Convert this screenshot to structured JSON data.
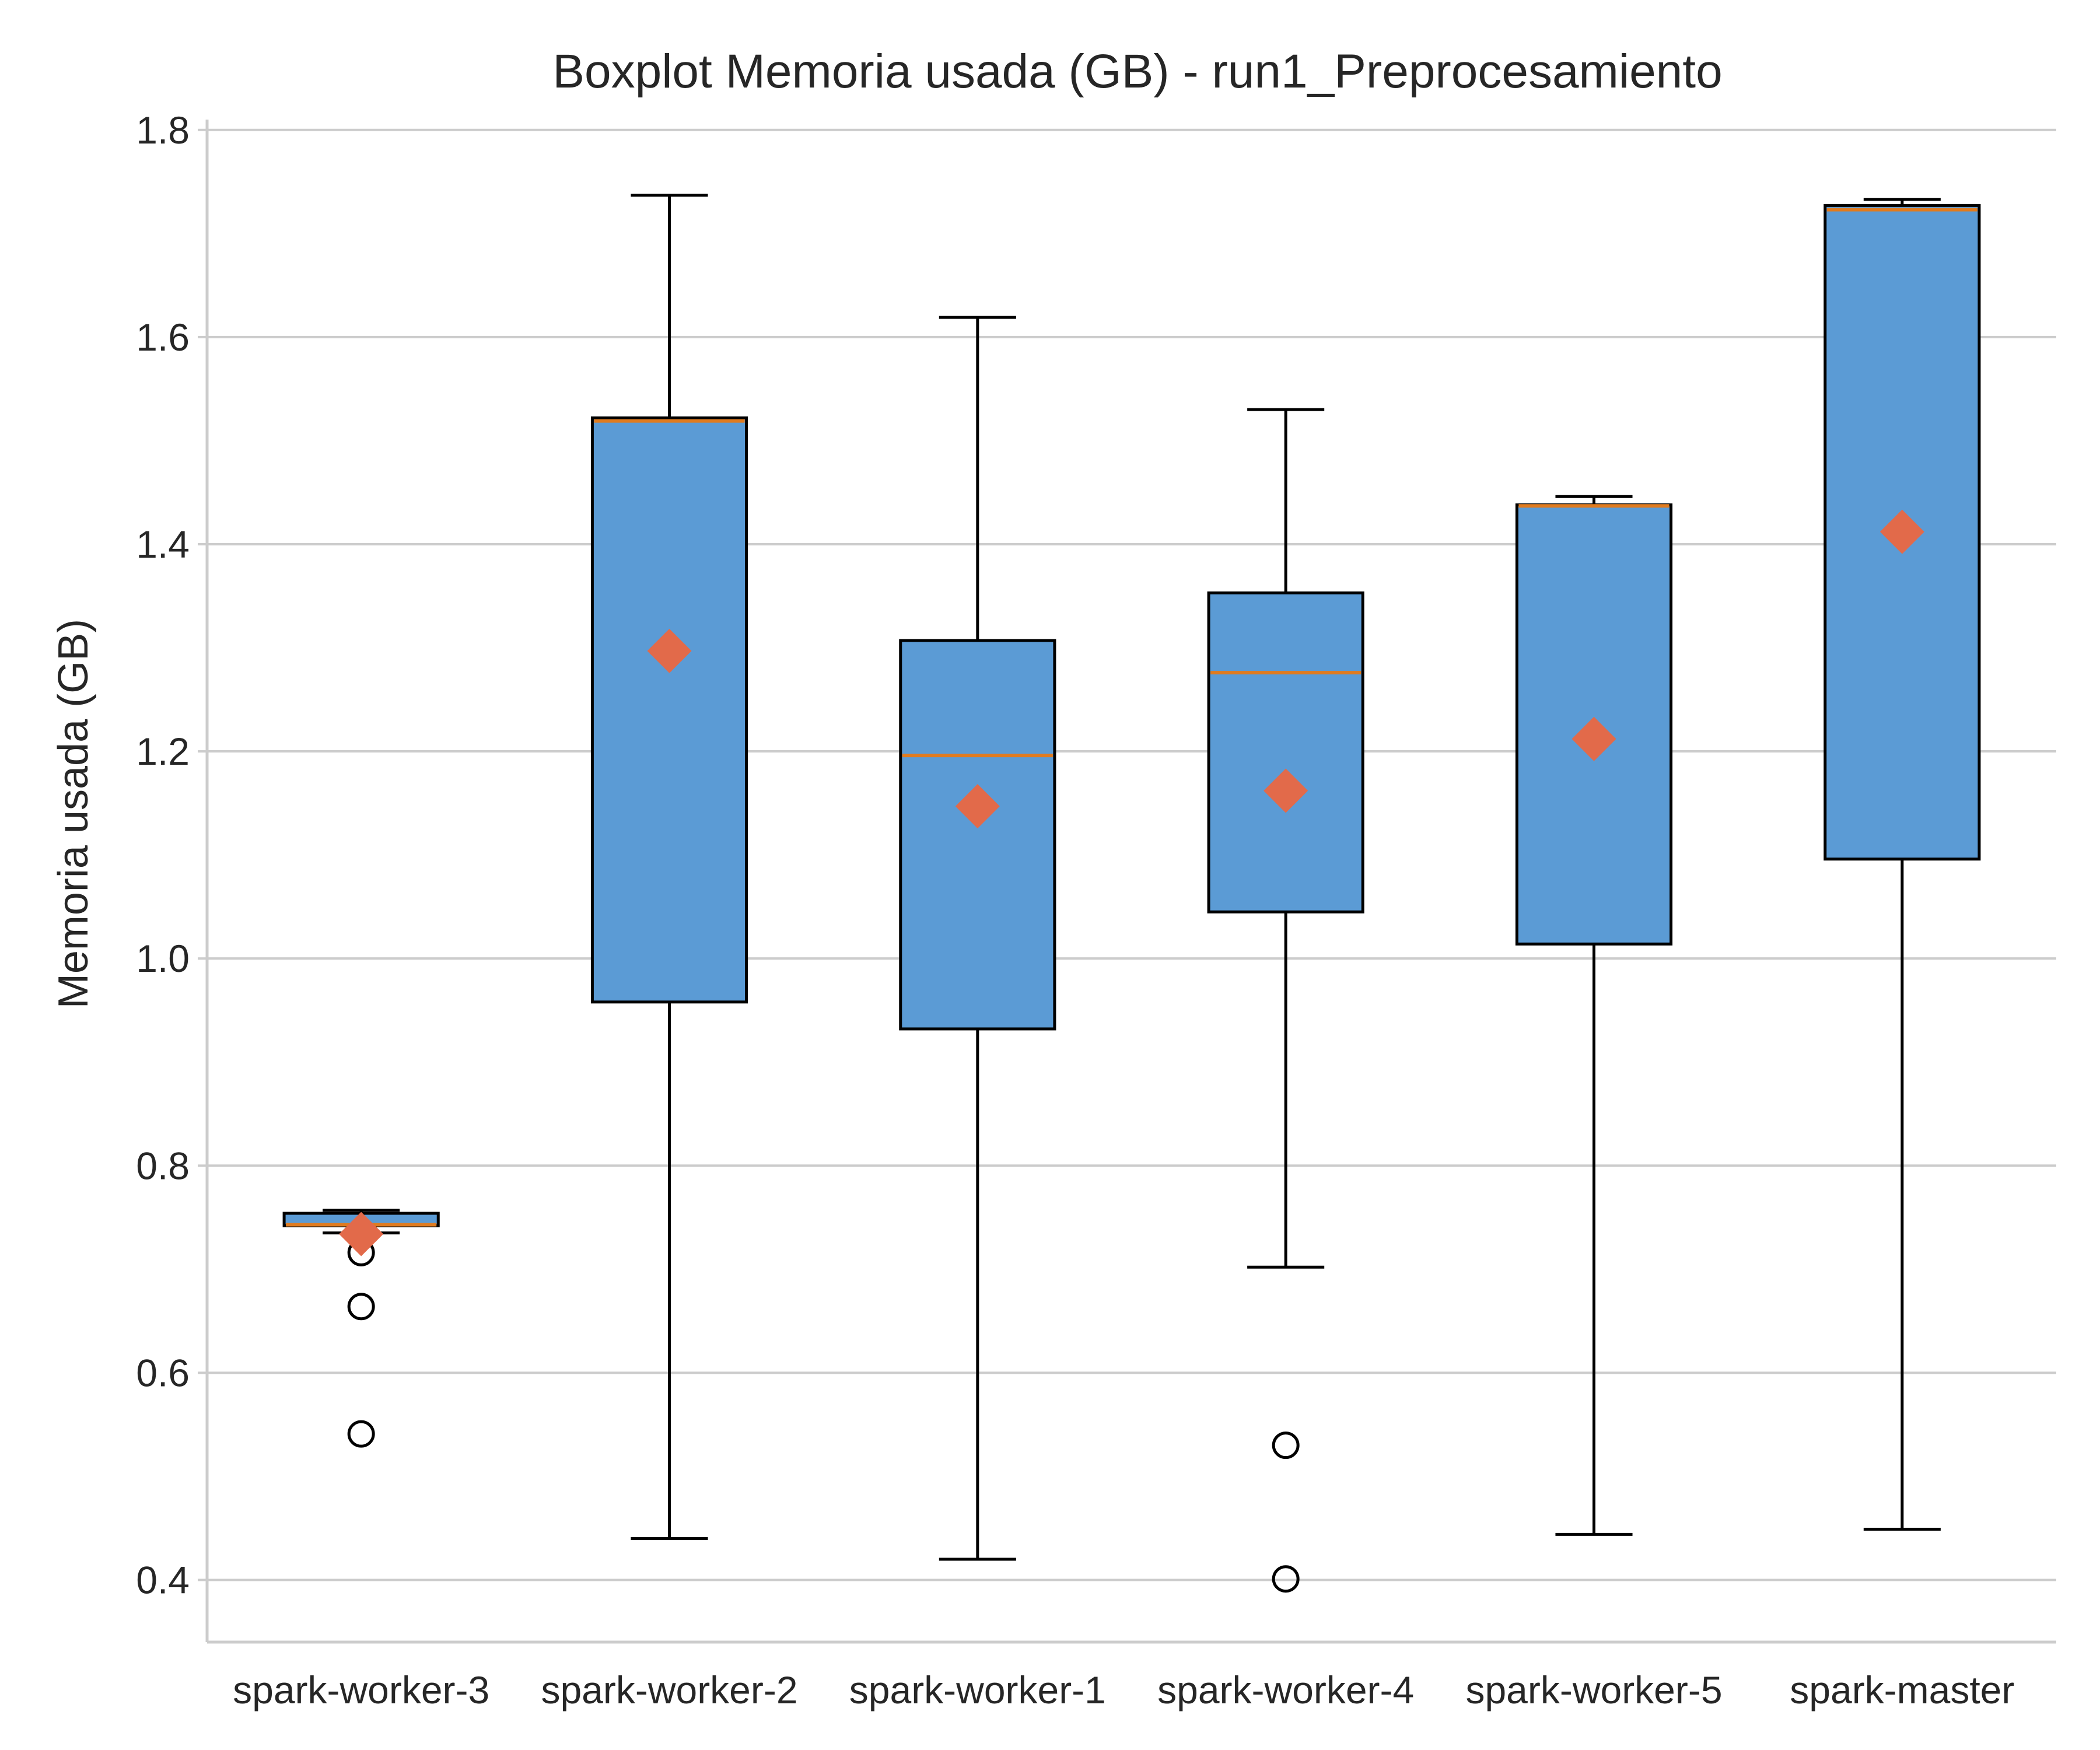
{
  "chart_data": {
    "type": "box",
    "title": "Boxplot Memoria usada (GB) - run1_Preprocesamiento",
    "xlabel": "",
    "ylabel": "Memoria usada (GB)",
    "ylim": [
      0.34,
      1.81
    ],
    "yticks": [
      0.4,
      0.6,
      0.8,
      1.0,
      1.2,
      1.4,
      1.6,
      1.8
    ],
    "ytick_labels": [
      "0.4",
      "0.6",
      "0.8",
      "1.0",
      "1.2",
      "1.4",
      "1.6",
      "1.8"
    ],
    "grid": "y",
    "colors": {
      "box_fill": "#5b9bd5",
      "box_edge": "#000000",
      "median": "#e07b1f",
      "mean": "#e26a4a",
      "grid": "#cccccc",
      "spine": "#cccccc"
    },
    "categories": [
      "spark-worker-3",
      "spark-worker-2",
      "spark-worker-1",
      "spark-worker-4",
      "spark-worker-5",
      "spark-master"
    ],
    "boxes": [
      {
        "category": "spark-worker-3",
        "whisker_low": 0.735,
        "q1": 0.742,
        "median": 0.743,
        "q3": 0.754,
        "whisker_high": 0.757,
        "mean": 0.734,
        "outliers": [
          0.716,
          0.664,
          0.541
        ]
      },
      {
        "category": "spark-worker-2",
        "whisker_low": 0.44,
        "q1": 0.958,
        "median": 1.519,
        "q3": 1.522,
        "whisker_high": 1.737,
        "mean": 1.297,
        "outliers": []
      },
      {
        "category": "spark-worker-1",
        "whisker_low": 0.42,
        "q1": 0.932,
        "median": 1.196,
        "q3": 1.307,
        "whisker_high": 1.619,
        "mean": 1.147,
        "outliers": []
      },
      {
        "category": "spark-worker-4",
        "whisker_low": 0.702,
        "q1": 1.045,
        "median": 1.276,
        "q3": 1.353,
        "whisker_high": 1.53,
        "mean": 1.162,
        "outliers": [
          0.53,
          0.401
        ]
      },
      {
        "category": "spark-worker-5",
        "whisker_low": 0.444,
        "q1": 1.014,
        "median": 1.437,
        "q3": 1.438,
        "whisker_high": 1.446,
        "mean": 1.212,
        "outliers": []
      },
      {
        "category": "spark-master",
        "whisker_low": 0.449,
        "q1": 1.096,
        "median": 1.723,
        "q3": 1.727,
        "whisker_high": 1.733,
        "mean": 1.412,
        "outliers": []
      }
    ]
  }
}
